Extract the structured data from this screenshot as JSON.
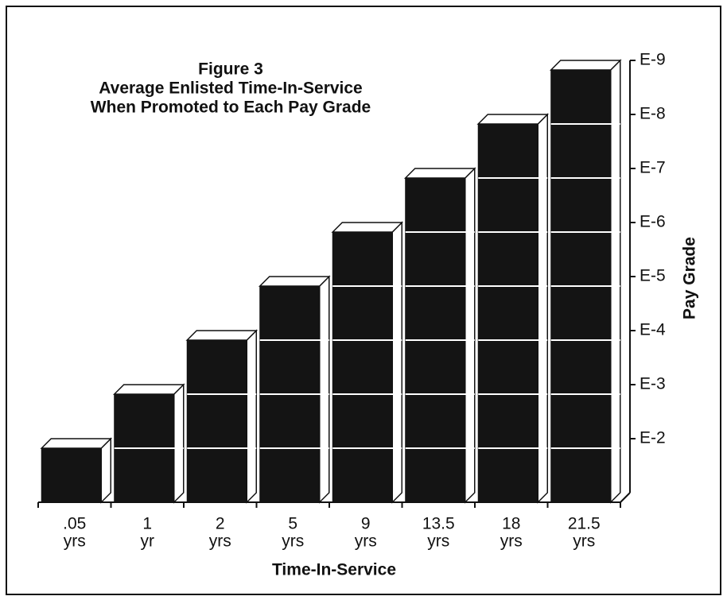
{
  "chart_data": {
    "type": "bar3d",
    "title": [
      "Figure 3",
      "Average Enlisted Time-In-Service",
      "When Promoted to Each Pay Grade"
    ],
    "x_label": "Time-In-Service",
    "y_label": "Pay Grade",
    "categories": [
      [
        ".05",
        "yrs"
      ],
      [
        "1",
        "yr"
      ],
      [
        "2",
        "yrs"
      ],
      [
        "5",
        "yrs"
      ],
      [
        "9",
        "yrs"
      ],
      [
        "13.5",
        "yrs"
      ],
      [
        "18",
        "yrs"
      ],
      [
        "21.5",
        "yrs"
      ]
    ],
    "values": [
      1,
      2,
      3,
      4,
      5,
      6,
      7,
      8
    ],
    "color": "#141414",
    "ylim": [
      0,
      8
    ],
    "yticks": [
      {
        "value": 1,
        "label": "E-2"
      },
      {
        "value": 2,
        "label": "E-3"
      },
      {
        "value": 3,
        "label": "E-4"
      },
      {
        "value": 4,
        "label": "E-5"
      },
      {
        "value": 5,
        "label": "E-6"
      },
      {
        "value": 6,
        "label": "E-7"
      },
      {
        "value": 7,
        "label": "E-8"
      },
      {
        "value": 8,
        "label": "E-9"
      }
    ]
  }
}
